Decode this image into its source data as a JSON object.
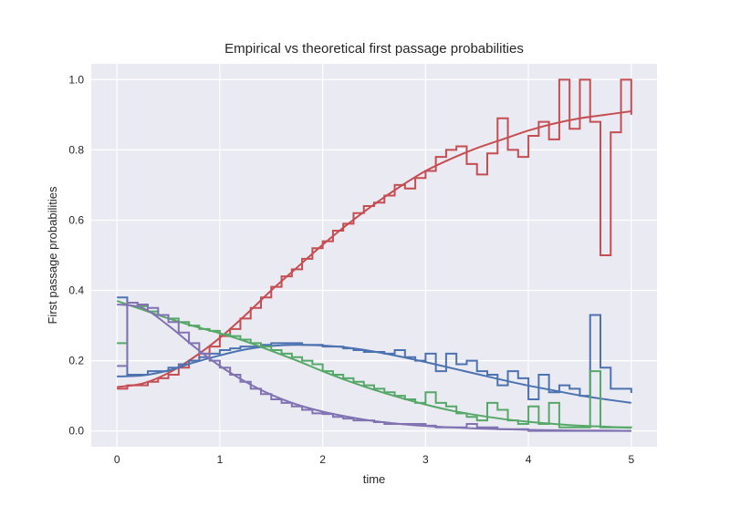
{
  "chart_data": {
    "type": "line",
    "title": "Empirical vs theoretical first passage probabilities",
    "xlabel": "time",
    "ylabel": "First passage probabilities",
    "xlim": [
      -0.25,
      5.25
    ],
    "ylim": [
      -0.045,
      1.045
    ],
    "xticks": [
      0,
      1,
      2,
      3,
      4,
      5
    ],
    "xtick_labels": [
      "0",
      "1",
      "2",
      "3",
      "4",
      "5"
    ],
    "yticks": [
      0.0,
      0.2,
      0.4,
      0.6,
      0.8,
      1.0
    ],
    "ytick_labels": [
      "0.0",
      "0.2",
      "0.4",
      "0.6",
      "0.8",
      "1.0"
    ],
    "grid": true,
    "background": "#eaeaf2",
    "theory_x": [
      0,
      0.25,
      0.5,
      0.75,
      1,
      1.25,
      1.5,
      1.75,
      2,
      2.25,
      2.5,
      2.75,
      3,
      3.25,
      3.5,
      3.75,
      4,
      4.25,
      4.5,
      4.75,
      5
    ],
    "empirical_bin_edges": [
      0,
      5,
      0.1
    ],
    "series": [
      {
        "color": "#c44e52",
        "theory": [
          0.125,
          0.135,
          0.165,
          0.21,
          0.265,
          0.33,
          0.4,
          0.465,
          0.53,
          0.59,
          0.645,
          0.695,
          0.74,
          0.775,
          0.805,
          0.83,
          0.855,
          0.875,
          0.89,
          0.9,
          0.91
        ],
        "empirical": [
          0.12,
          0.13,
          0.13,
          0.14,
          0.15,
          0.16,
          0.18,
          0.2,
          0.22,
          0.24,
          0.27,
          0.29,
          0.32,
          0.35,
          0.38,
          0.41,
          0.44,
          0.46,
          0.49,
          0.52,
          0.54,
          0.57,
          0.59,
          0.62,
          0.64,
          0.65,
          0.67,
          0.7,
          0.69,
          0.72,
          0.74,
          0.78,
          0.8,
          0.81,
          0.76,
          0.73,
          0.79,
          0.89,
          0.8,
          0.78,
          0.84,
          0.88,
          0.83,
          1.0,
          0.86,
          1.0,
          0.88,
          0.5,
          0.85,
          1.0
        ]
      },
      {
        "color": "#4c72b0",
        "theory": [
          0.155,
          0.158,
          0.172,
          0.195,
          0.215,
          0.232,
          0.242,
          0.245,
          0.243,
          0.237,
          0.226,
          0.212,
          0.196,
          0.179,
          0.162,
          0.145,
          0.129,
          0.115,
          0.101,
          0.09,
          0.08
        ],
        "empirical": [
          0.38,
          0.16,
          0.16,
          0.17,
          0.17,
          0.18,
          0.19,
          0.2,
          0.21,
          0.22,
          0.23,
          0.235,
          0.24,
          0.24,
          0.245,
          0.25,
          0.25,
          0.25,
          0.245,
          0.245,
          0.24,
          0.24,
          0.235,
          0.23,
          0.225,
          0.225,
          0.22,
          0.23,
          0.21,
          0.2,
          0.22,
          0.17,
          0.22,
          0.19,
          0.2,
          0.17,
          0.16,
          0.13,
          0.17,
          0.15,
          0.09,
          0.16,
          0.11,
          0.13,
          0.12,
          0.1,
          0.33,
          0.18,
          0.12,
          0.12
        ]
      },
      {
        "color": "#55a868",
        "theory": [
          0.37,
          0.345,
          0.32,
          0.298,
          0.278,
          0.255,
          0.228,
          0.2,
          0.17,
          0.142,
          0.117,
          0.095,
          0.075,
          0.058,
          0.045,
          0.034,
          0.026,
          0.02,
          0.015,
          0.012,
          0.009
        ],
        "empirical": [
          0.25,
          0.365,
          0.355,
          0.34,
          0.33,
          0.32,
          0.31,
          0.3,
          0.29,
          0.285,
          0.275,
          0.27,
          0.26,
          0.25,
          0.24,
          0.23,
          0.22,
          0.21,
          0.2,
          0.19,
          0.17,
          0.16,
          0.15,
          0.14,
          0.13,
          0.12,
          0.11,
          0.1,
          0.09,
          0.08,
          0.11,
          0.08,
          0.07,
          0.05,
          0.04,
          0.03,
          0.08,
          0.06,
          0.03,
          0.02,
          0.07,
          0.02,
          0.08,
          0.01,
          0.01,
          0.01,
          0.17,
          0.01,
          0.01,
          0.01
        ]
      },
      {
        "color": "#8172b2",
        "theory": [
          0.36,
          0.35,
          0.3,
          0.24,
          0.185,
          0.14,
          0.103,
          0.075,
          0.055,
          0.04,
          0.028,
          0.02,
          0.014,
          0.01,
          0.007,
          0.005,
          0.003,
          0.002,
          0.001,
          0.001,
          0.0
        ],
        "empirical": [
          0.185,
          0.365,
          0.36,
          0.35,
          0.33,
          0.31,
          0.28,
          0.25,
          0.22,
          0.2,
          0.18,
          0.16,
          0.14,
          0.12,
          0.105,
          0.09,
          0.08,
          0.07,
          0.06,
          0.05,
          0.048,
          0.04,
          0.035,
          0.03,
          0.03,
          0.025,
          0.02,
          0.02,
          0.02,
          0.02,
          0.015,
          0.01,
          0.01,
          0.01,
          0.02,
          0.01,
          0.01,
          0.005,
          0.005,
          0.005,
          0,
          0,
          0,
          0,
          0,
          0,
          0,
          0,
          0,
          0
        ]
      }
    ]
  }
}
